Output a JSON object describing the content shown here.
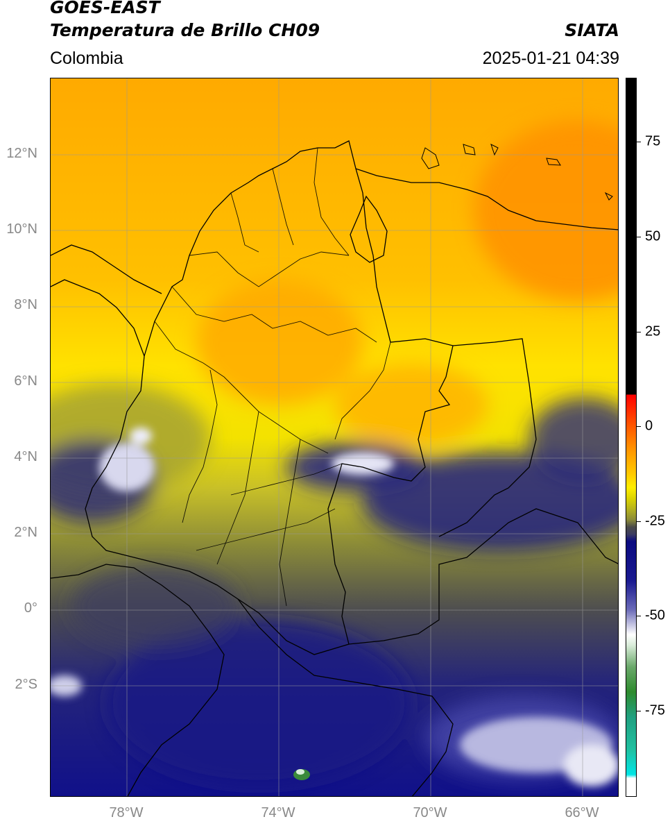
{
  "header": {
    "title_line1": "GOES-EAST",
    "title_line2": "Temperatura de Brillo CH09",
    "brand": "SIATA",
    "region": "Colombia",
    "timestamp": "2025-01-21 04:39"
  },
  "map": {
    "lat_labels": [
      "12°N",
      "10°N",
      "8°N",
      "6°N",
      "4°N",
      "2°N",
      "0°",
      "2°S"
    ],
    "lon_labels": [
      "78°W",
      "74°W",
      "70°W",
      "66°W"
    ]
  },
  "colorbar": {
    "ticks": [
      "75",
      "50",
      "25",
      "0",
      "-25",
      "-50",
      "-75"
    ],
    "colors": {
      "black": "#000000",
      "red": "#ff0000",
      "orange": "#ff8c00",
      "yellow": "#ffee00",
      "olive": "#b5b21e",
      "gray": "#4a4a4a",
      "navy": "#0a0a80",
      "white": "#ffffff",
      "green": "#2e8b2e",
      "teal": "#20c0a0",
      "cyan": "#00e5e5"
    }
  }
}
